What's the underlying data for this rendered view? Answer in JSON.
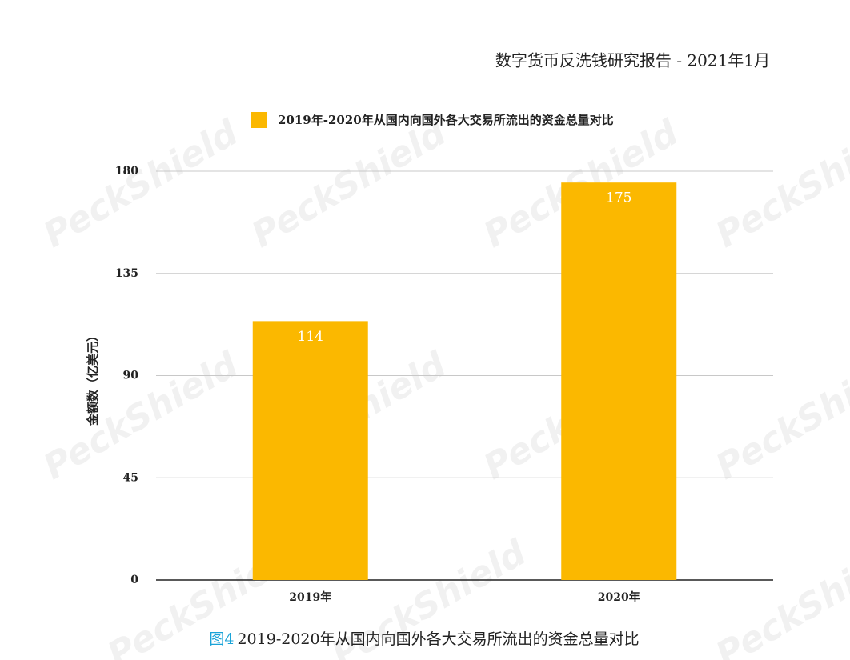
{
  "header": {
    "title": "数字货币反洗钱研究报告 - 2021年1月"
  },
  "watermark": "PeckShield",
  "chart_data": {
    "type": "bar",
    "y_label": "金额数（亿美元）",
    "categories": [
      "2019年",
      "2020年"
    ],
    "series": [
      {
        "name": "2019年-2020年从国内向国外各大交易所流出的资金总量对比",
        "color": "#fbb800",
        "values": [
          114,
          175
        ]
      }
    ],
    "ylim": [
      0,
      180
    ],
    "yticks": [
      0,
      45,
      90,
      135,
      180
    ],
    "grid": true,
    "legend": "top"
  },
  "caption": {
    "label": "图4",
    "text": "2019-2020年从国内向国外各大交易所流出的资金总量对比"
  }
}
